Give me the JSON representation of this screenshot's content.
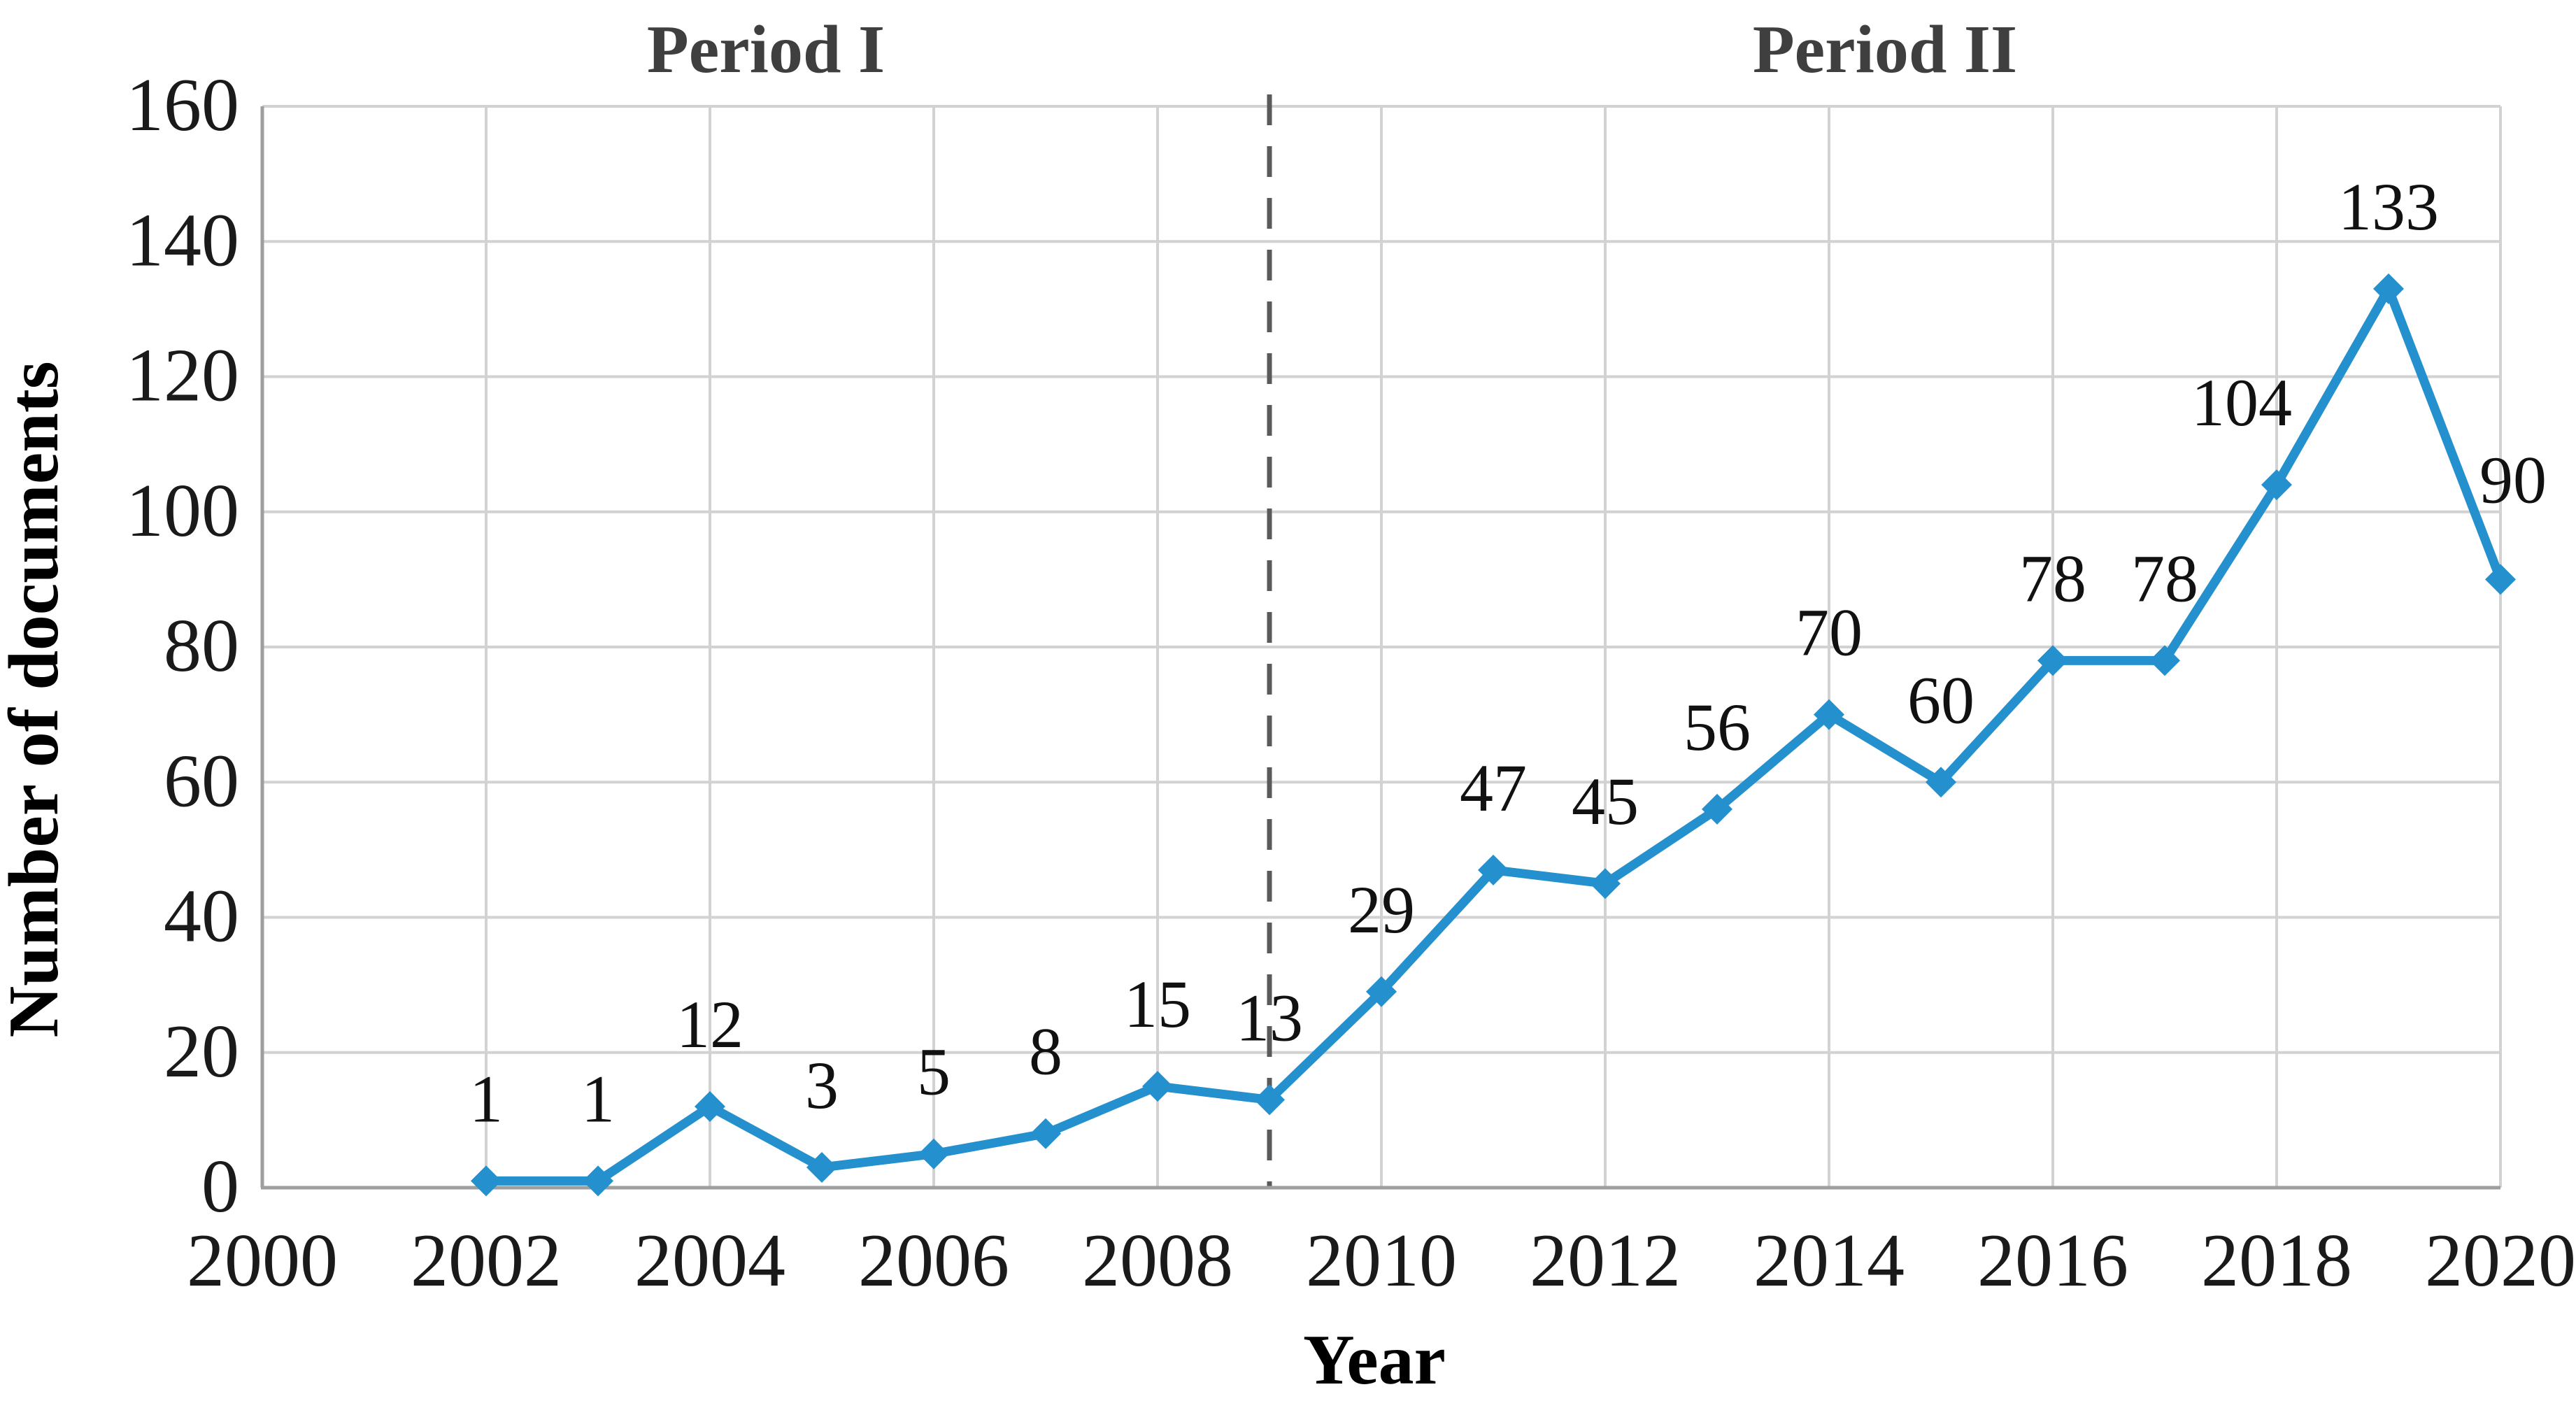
{
  "figure": {
    "background": "#FFFFFF"
  },
  "chart_data": {
    "type": "line",
    "title": "",
    "xlabel": "Year",
    "ylabel": "Number of documents",
    "x": [
      2002,
      2003,
      2004,
      2005,
      2006,
      2007,
      2008,
      2009,
      2010,
      2011,
      2012,
      2013,
      2014,
      2015,
      2016,
      2017,
      2018,
      2019,
      2020
    ],
    "values": [
      1,
      1,
      12,
      3,
      5,
      8,
      15,
      13,
      29,
      47,
      45,
      56,
      70,
      60,
      78,
      78,
      104,
      133,
      90
    ],
    "data_labels": [
      "1",
      "1",
      "12",
      "3",
      "5",
      "8",
      "15",
      "13",
      "29",
      "47",
      "45",
      "56",
      "70",
      "60",
      "78",
      "78",
      "104",
      "133",
      "90"
    ],
    "xlim": [
      2000,
      2020
    ],
    "ylim": [
      0,
      160
    ],
    "xticks": [
      2000,
      2002,
      2004,
      2006,
      2008,
      2010,
      2012,
      2014,
      2016,
      2018,
      2020
    ],
    "yticks": [
      0,
      20,
      40,
      60,
      80,
      100,
      120,
      140,
      160
    ],
    "grid": true,
    "legend": null,
    "marker": "diamond",
    "divider": {
      "x": 2009,
      "style": "dashed"
    },
    "periods": {
      "left": "Period I",
      "right": "Period II"
    },
    "colors": {
      "line": "#2590CE",
      "marker": "#2590CE",
      "grid": "#D2D2D2",
      "axis": "#9E9E9E",
      "divider": "#5A5A5A",
      "period_text": "#3F3F3F",
      "data_label_text": "#111111",
      "tick_text": "#1A1A1A",
      "axis_title_text": "#000000"
    }
  }
}
